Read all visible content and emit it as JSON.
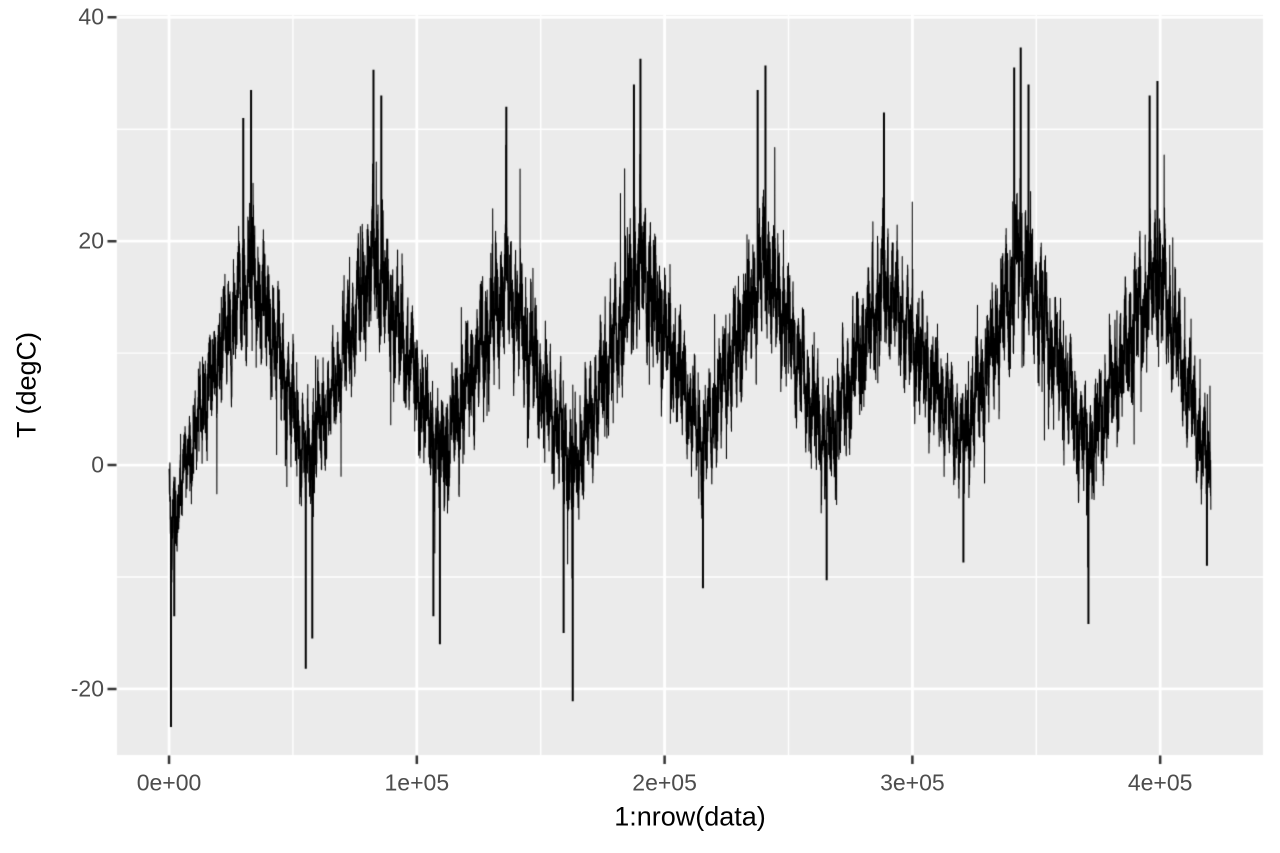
{
  "chart_data": {
    "type": "line",
    "title": "",
    "xlabel": "1:nrow(data)",
    "ylabel": "T (degC)",
    "series": [
      {
        "name": "T (degC)",
        "color": "#000000"
      }
    ],
    "x_ticks": [
      {
        "label": "0e+00",
        "value": 0
      },
      {
        "label": "1e+05",
        "value": 100000
      },
      {
        "label": "2e+05",
        "value": 200000
      },
      {
        "label": "3e+05",
        "value": 300000
      },
      {
        "label": "4e+05",
        "value": 400000
      }
    ],
    "y_ticks": [
      {
        "label": "-20",
        "value": -20
      },
      {
        "label": "0",
        "value": 0
      },
      {
        "label": "20",
        "value": 20
      },
      {
        "label": "40",
        "value": 40
      }
    ],
    "x_minor_ticks": [
      50000,
      150000,
      250000,
      350000
    ],
    "y_minor_ticks": [
      -10,
      10,
      30
    ],
    "xlim": [
      -21000,
      441500
    ],
    "ylim": [
      -25.9,
      40.2
    ],
    "n_points": 420451,
    "points_per_year": 52556,
    "years_span": 8.0,
    "seasonal_cycles": 8,
    "data_min": -23.4,
    "data_max": 37.3,
    "grid": "on",
    "legend": "none",
    "envelope_keypoints": [
      {
        "t": 0.0,
        "center": -2.0,
        "hi": 3.0,
        "lo": -7.0
      },
      {
        "t": 0.015,
        "center": -5.5,
        "hi": 0.0,
        "lo": -14.0
      },
      {
        "t": 0.1,
        "center": -1.0,
        "hi": 4.0,
        "lo": -7.0
      },
      {
        "t": 0.3,
        "center": 7.0,
        "hi": 14.0,
        "lo": 0.0
      },
      {
        "t": 0.63,
        "center": 17.5,
        "hi": 27.0,
        "lo": 8.0
      },
      {
        "t": 0.85,
        "center": 10.0,
        "hi": 18.0,
        "lo": 2.0
      },
      {
        "t": 1.05,
        "center": 0.5,
        "hi": 8.0,
        "lo": -8.0
      },
      {
        "t": 1.3,
        "center": 8.0,
        "hi": 15.0,
        "lo": 1.0
      },
      {
        "t": 1.57,
        "center": 18.5,
        "hi": 28.0,
        "lo": 9.0
      },
      {
        "t": 1.8,
        "center": 11.0,
        "hi": 19.0,
        "lo": 3.0
      },
      {
        "t": 2.08,
        "center": 1.0,
        "hi": 8.0,
        "lo": -7.5
      },
      {
        "t": 2.59,
        "center": 16.5,
        "hi": 26.0,
        "lo": 7.0
      },
      {
        "t": 3.1,
        "center": -0.5,
        "hi": 7.0,
        "lo": -9.0
      },
      {
        "t": 3.62,
        "center": 18.0,
        "hi": 28.5,
        "lo": 9.0
      },
      {
        "t": 4.1,
        "center": 2.0,
        "hi": 9.0,
        "lo": -6.0
      },
      {
        "t": 4.58,
        "center": 18.0,
        "hi": 28.0,
        "lo": 9.0
      },
      {
        "t": 5.05,
        "center": 2.0,
        "hi": 9.0,
        "lo": -7.0
      },
      {
        "t": 5.49,
        "center": 16.0,
        "hi": 25.5,
        "lo": 7.0
      },
      {
        "t": 6.1,
        "center": 2.5,
        "hi": 9.0,
        "lo": -5.5
      },
      {
        "t": 6.54,
        "center": 18.5,
        "hi": 29.0,
        "lo": 9.0
      },
      {
        "t": 7.06,
        "center": 1.5,
        "hi": 8.5,
        "lo": -7.5
      },
      {
        "t": 7.59,
        "center": 17.5,
        "hi": 27.5,
        "lo": 8.5
      },
      {
        "t": 8.0,
        "center": -0.5,
        "hi": 5.0,
        "lo": -8.5
      }
    ],
    "extreme_spikes": [
      {
        "t": 0.015,
        "value": -23.4
      },
      {
        "t": 0.04,
        "value": -13.5
      },
      {
        "t": 0.57,
        "value": 31.0
      },
      {
        "t": 0.63,
        "value": 33.5
      },
      {
        "t": 1.05,
        "value": -18.2
      },
      {
        "t": 1.1,
        "value": -15.5
      },
      {
        "t": 1.57,
        "value": 35.3
      },
      {
        "t": 1.63,
        "value": 33.0
      },
      {
        "t": 2.03,
        "value": -13.5
      },
      {
        "t": 2.08,
        "value": -16.0
      },
      {
        "t": 2.59,
        "value": 32.0
      },
      {
        "t": 3.03,
        "value": -15.0
      },
      {
        "t": 3.1,
        "value": -21.1
      },
      {
        "t": 3.57,
        "value": 34.0
      },
      {
        "t": 3.62,
        "value": 36.3
      },
      {
        "t": 4.1,
        "value": -11.0
      },
      {
        "t": 4.52,
        "value": 33.5
      },
      {
        "t": 4.58,
        "value": 35.7
      },
      {
        "t": 5.05,
        "value": -10.3
      },
      {
        "t": 5.49,
        "value": 31.5
      },
      {
        "t": 6.1,
        "value": -8.7
      },
      {
        "t": 6.49,
        "value": 35.5
      },
      {
        "t": 6.54,
        "value": 37.3
      },
      {
        "t": 6.6,
        "value": 34.0
      },
      {
        "t": 7.06,
        "value": -14.2
      },
      {
        "t": 7.53,
        "value": 33.0
      },
      {
        "t": 7.59,
        "value": 34.3
      },
      {
        "t": 7.97,
        "value": -9.0
      }
    ],
    "appearance": {
      "panel_bg": "#EBEBEB",
      "grid_major_color": "#FFFFFF",
      "grid_minor_color": "#FFFFFF",
      "tick_mark_color": "#333333",
      "tick_label_color": "#4D4D4D",
      "axis_title_color": "#000000",
      "line_color": "#000000",
      "outer_bg": "#FFFFFF"
    },
    "render": {
      "samples": 11000,
      "seed": 20090101
    }
  }
}
